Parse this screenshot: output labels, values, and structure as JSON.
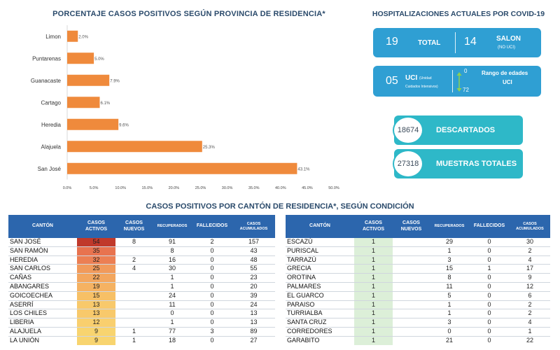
{
  "chart_data": {
    "type": "bar",
    "orientation": "horizontal",
    "title": "PORCENTAJE CASOS POSITIVOS SEGÚN PROVINCIA DE RESIDENCIA*",
    "categories": [
      "Limon",
      "Puntarenas",
      "Guanacaste",
      "Cartago",
      "Heredia",
      "Alajuela",
      "San José"
    ],
    "values": [
      2.0,
      5.0,
      7.9,
      6.1,
      9.6,
      25.3,
      43.1
    ],
    "value_labels": [
      "2.0%",
      "5.0%",
      "7.9%",
      "6.1%",
      "9.6%",
      "25.3%",
      "43.1%"
    ],
    "xlim": [
      0,
      50
    ],
    "ticks": [
      "0.0%",
      "5.0%",
      "10.0%",
      "15.0%",
      "20.0%",
      "25.0%",
      "30.0%",
      "35.0%",
      "40.0%",
      "45.0%",
      "50.0%"
    ],
    "bar_color": "#ef8a3c",
    "grid": false
  },
  "hospital": {
    "title": "HOSPITALIZACIONES ACTUALES POR COVID-19",
    "total_value": "19",
    "total_label": "TOTAL",
    "salon_value": "14",
    "salon_label": "SALON",
    "salon_sub": "(NO UCI)",
    "uci_value": "05",
    "uci_label": "UCI",
    "uci_sub_1": "(Unidad",
    "uci_sub_2": "Cuidados Intensivos)",
    "age_min": "0",
    "age_max": "72",
    "age_label_1": "Rango de edades",
    "age_label_2": "UCI",
    "panel_color": "#2f9fd3"
  },
  "descartados": {
    "value": "18674",
    "label": "DESCARTADOS"
  },
  "muestras": {
    "value": "27318",
    "label": "MUESTRAS TOTALES"
  },
  "table_title": "CASOS POSITIVOS POR CANTÓN DE RESIDENCIA*, SEGÚN CONDICIÓN",
  "table_headers": {
    "canton": "CANTÓN",
    "activos": "CASOS ACTIVOS",
    "nuevos": "CASOS NUEVOS",
    "recuperados": "RECUPERADOS",
    "fallecidos": "FALLECIDOS",
    "acumulados": "CASOS ACUMULADOS"
  },
  "left_rows": [
    {
      "canton": "SAN JOSÉ",
      "activos": "54",
      "nuevos": "8",
      "recuperados": "91",
      "fallecidos": "2",
      "acumulados": "157",
      "color": "#c0392b"
    },
    {
      "canton": "SAN RAMÓN",
      "activos": "35",
      "nuevos": "",
      "recuperados": "8",
      "fallecidos": "0",
      "acumulados": "43",
      "color": "#e8734f"
    },
    {
      "canton": "HEREDIA",
      "activos": "32",
      "nuevos": "2",
      "recuperados": "16",
      "fallecidos": "0",
      "acumulados": "48",
      "color": "#ec7f53"
    },
    {
      "canton": "SAN CARLOS",
      "activos": "25",
      "nuevos": "4",
      "recuperados": "30",
      "fallecidos": "0",
      "acumulados": "55",
      "color": "#f19a5b"
    },
    {
      "canton": "CAÑAS",
      "activos": "22",
      "nuevos": "",
      "recuperados": "1",
      "fallecidos": "0",
      "acumulados": "23",
      "color": "#f3a65e"
    },
    {
      "canton": "ABANGARES",
      "activos": "19",
      "nuevos": "",
      "recuperados": "1",
      "fallecidos": "0",
      "acumulados": "20",
      "color": "#f5b262"
    },
    {
      "canton": "GOICOECHEA",
      "activos": "15",
      "nuevos": "",
      "recuperados": "24",
      "fallecidos": "0",
      "acumulados": "39",
      "color": "#f7c066"
    },
    {
      "canton": "ASERRÍ",
      "activos": "13",
      "nuevos": "",
      "recuperados": "11",
      "fallecidos": "0",
      "acumulados": "24",
      "color": "#f8c96b"
    },
    {
      "canton": "LOS CHILES",
      "activos": "13",
      "nuevos": "",
      "recuperados": "0",
      "fallecidos": "0",
      "acumulados": "13",
      "color": "#f8c96b"
    },
    {
      "canton": "LIBERIA",
      "activos": "12",
      "nuevos": "",
      "recuperados": "1",
      "fallecidos": "0",
      "acumulados": "13",
      "color": "#f9cf6e"
    },
    {
      "canton": "ALAJUELA",
      "activos": "9",
      "nuevos": "1",
      "recuperados": "77",
      "fallecidos": "3",
      "acumulados": "89",
      "color": "#f8d46f"
    },
    {
      "canton": "LA UNIÓN",
      "activos": "9",
      "nuevos": "1",
      "recuperados": "18",
      "fallecidos": "0",
      "acumulados": "27",
      "color": "#f8d46f"
    }
  ],
  "right_rows": [
    {
      "canton": "ESCAZÚ",
      "activos": "1",
      "nuevos": "",
      "recuperados": "29",
      "fallecidos": "0",
      "acumulados": "30"
    },
    {
      "canton": "PURISCAL",
      "activos": "1",
      "nuevos": "",
      "recuperados": "1",
      "fallecidos": "0",
      "acumulados": "2"
    },
    {
      "canton": "TARRAZÚ",
      "activos": "1",
      "nuevos": "",
      "recuperados": "3",
      "fallecidos": "0",
      "acumulados": "4"
    },
    {
      "canton": "GRECIA",
      "activos": "1",
      "nuevos": "",
      "recuperados": "15",
      "fallecidos": "1",
      "acumulados": "17"
    },
    {
      "canton": "OROTINA",
      "activos": "1",
      "nuevos": "",
      "recuperados": "8",
      "fallecidos": "0",
      "acumulados": "9"
    },
    {
      "canton": "PALMARES",
      "activos": "1",
      "nuevos": "",
      "recuperados": "11",
      "fallecidos": "0",
      "acumulados": "12"
    },
    {
      "canton": "EL GUARCO",
      "activos": "1",
      "nuevos": "",
      "recuperados": "5",
      "fallecidos": "0",
      "acumulados": "6"
    },
    {
      "canton": "PARAISO",
      "activos": "1",
      "nuevos": "",
      "recuperados": "1",
      "fallecidos": "0",
      "acumulados": "2"
    },
    {
      "canton": "TURRIALBA",
      "activos": "1",
      "nuevos": "",
      "recuperados": "1",
      "fallecidos": "0",
      "acumulados": "2"
    },
    {
      "canton": "SANTA CRUZ",
      "activos": "1",
      "nuevos": "",
      "recuperados": "3",
      "fallecidos": "0",
      "acumulados": "4"
    },
    {
      "canton": "CORREDORES",
      "activos": "1",
      "nuevos": "",
      "recuperados": "0",
      "fallecidos": "0",
      "acumulados": "1"
    },
    {
      "canton": "GARABITO",
      "activos": "1",
      "nuevos": "",
      "recuperados": "21",
      "fallecidos": "0",
      "acumulados": "22"
    }
  ]
}
